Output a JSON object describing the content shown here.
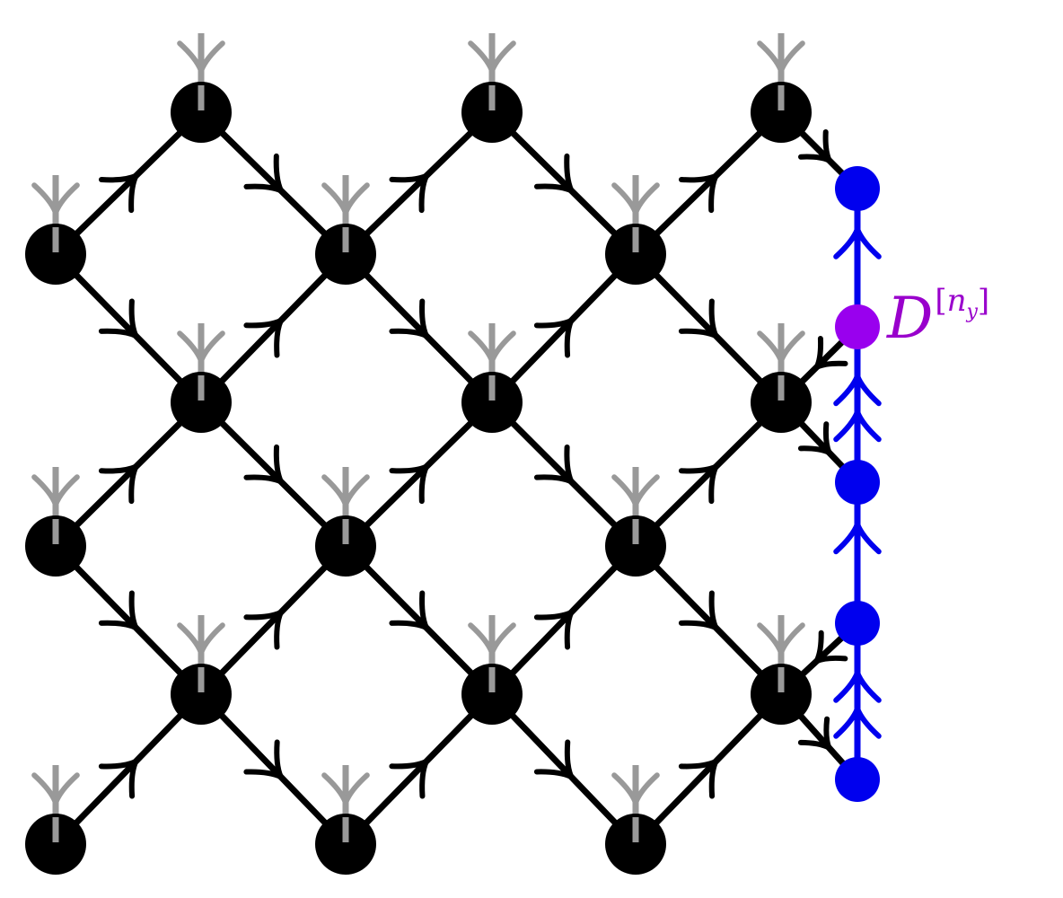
{
  "colors": {
    "node": "#000000",
    "edge": "#000000",
    "physical_leg": "#999999",
    "boundary_node": "#0000ee",
    "boundary_line": "#0000ee",
    "highlight_node": "#9900ee",
    "label": "#9900cc"
  },
  "label": {
    "symbol": "D",
    "superscript_open": "[",
    "superscript_var": "n",
    "superscript_sub": "y",
    "superscript_close": "]"
  }
}
